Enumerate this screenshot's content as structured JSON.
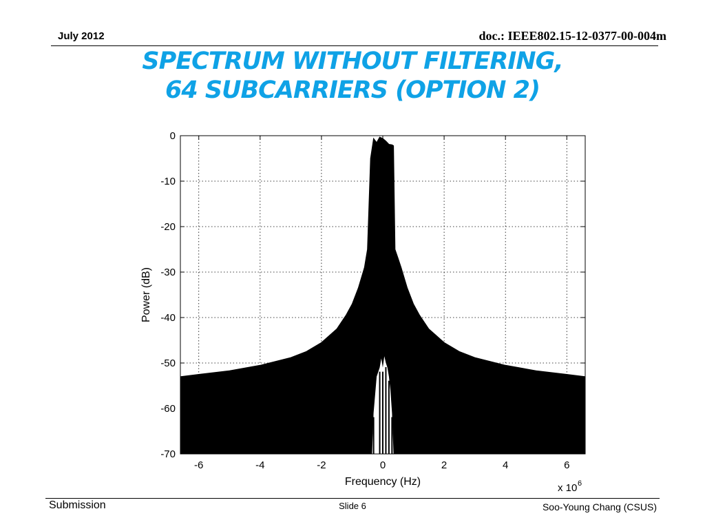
{
  "header": {
    "date": "July 2012",
    "doc": "doc.: IEEE802.15-12-0377-00-004m"
  },
  "slide": {
    "title_line1": "SPECTRUM WITHOUT FILTERING,",
    "title_line2": "64 SUBCARRIERS (OPTION 2)"
  },
  "footer": {
    "left": "Submission",
    "center": "Slide 6",
    "right": "Soo-Young Chang (CSUS)"
  },
  "chart_data": {
    "type": "area",
    "xlabel": "Frequency (Hz)",
    "ylabel": "Power (dB)",
    "x_multiplier_label": "x 10",
    "x_multiplier_exp": "6",
    "xlim": [
      -6.6,
      6.6
    ],
    "ylim": [
      -70,
      0
    ],
    "x_ticks": [
      -6,
      -4,
      -2,
      0,
      2,
      4,
      6
    ],
    "x_tick_labels": [
      "-6",
      "-4",
      "-2",
      "0",
      "2",
      "4",
      "6"
    ],
    "y_ticks": [
      0,
      -10,
      -20,
      -30,
      -40,
      -50,
      -60,
      -70
    ],
    "y_tick_labels": [
      "0",
      "-10",
      "-20",
      "-30",
      "-40",
      "-50",
      "-60",
      "-70"
    ],
    "grid": true,
    "fill_color": "#000000",
    "series": [
      {
        "x": [
          -6.6,
          -6.0,
          -5.0,
          -4.0,
          -3.0,
          -2.5,
          -2.0,
          -1.5,
          -1.2,
          -1.0,
          -0.8,
          -0.6,
          -0.5,
          -0.4,
          -0.3,
          -0.2,
          -0.1,
          0.0,
          0.1,
          0.2,
          0.3,
          0.35,
          0.4,
          0.5,
          0.6,
          0.8,
          1.0,
          1.2,
          1.5,
          2.0,
          2.5,
          3.0,
          4.0,
          5.0,
          6.0,
          6.6
        ],
        "y": [
          -53.0,
          -52.5,
          -51.7,
          -50.5,
          -48.8,
          -47.5,
          -45.5,
          -42.5,
          -39.5,
          -37.0,
          -33.5,
          -29.0,
          -25.0,
          -5.0,
          -0.6,
          -1.5,
          -0.3,
          -0.6,
          -1.2,
          -1.9,
          -2.0,
          -2.2,
          -25.0,
          -27.0,
          -29.0,
          -33.5,
          -37.0,
          -39.5,
          -42.5,
          -45.5,
          -47.5,
          -48.8,
          -50.5,
          -51.7,
          -52.5,
          -53.0
        ]
      }
    ],
    "gaps": [
      {
        "x": [
          -0.35,
          -0.3,
          -0.2,
          -0.1,
          -0.05,
          0.0,
          0.05,
          0.1,
          0.15,
          0.2,
          0.25,
          0.3,
          0.35
        ],
        "y": [
          -70,
          -61,
          -53,
          -51,
          -49,
          -51,
          -48.5,
          -50,
          -51,
          -53,
          -56,
          -61,
          -70
        ]
      }
    ]
  }
}
